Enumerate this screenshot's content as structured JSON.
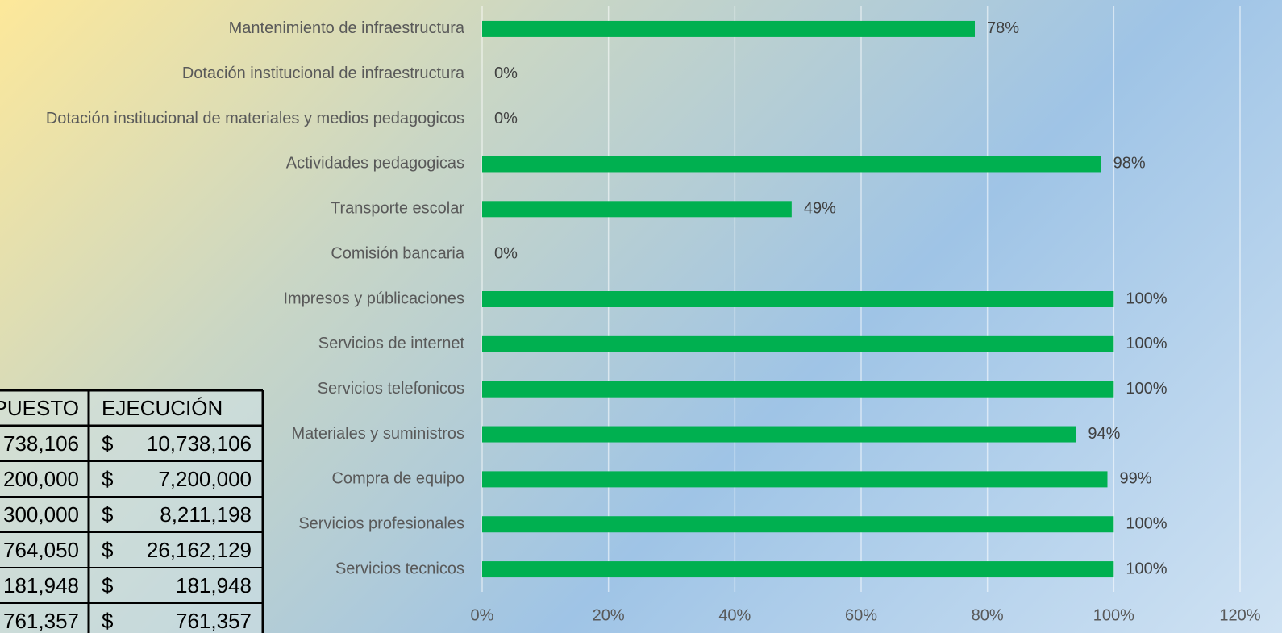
{
  "chart_data": {
    "type": "bar",
    "orientation": "horizontal",
    "categories": [
      "Mantenimiento de infraestructura",
      "Dotación institucional de infraestructura",
      "Dotación institucional de materiales y medios pedagogicos",
      "Actividades pedagogicas",
      "Transporte escolar",
      "Comisión bancaria",
      "Impresos y públicaciones",
      "Servicios de internet",
      "Servicios telefonicos",
      "Materiales y suministros",
      "Compra de equipo",
      "Servicios profesionales",
      "Servicios tecnicos"
    ],
    "values": [
      78,
      0,
      0,
      98,
      49,
      0,
      100,
      100,
      100,
      94,
      99,
      100,
      100
    ],
    "value_labels": [
      "78%",
      "0%",
      "0%",
      "98%",
      "49%",
      "0%",
      "100%",
      "100%",
      "100%",
      "94%",
      "99%",
      "100%",
      "100%"
    ],
    "color": "#00b050",
    "xlim": [
      0,
      120
    ],
    "xticks": [
      {
        "value": 0,
        "label": "0%"
      },
      {
        "value": 20,
        "label": "20%"
      },
      {
        "value": 40,
        "label": "40%"
      },
      {
        "value": 60,
        "label": "60%"
      },
      {
        "value": 80,
        "label": "80%"
      },
      {
        "value": 100,
        "label": "100%"
      },
      {
        "value": 120,
        "label": "120%"
      }
    ],
    "grid": true
  },
  "table": {
    "header": [
      "PUESTO",
      "EJECUCIÓN"
    ],
    "rows": [
      [
        "738,106",
        "$",
        "10,738,106"
      ],
      [
        "200,000",
        "$",
        "7,200,000"
      ],
      [
        "300,000",
        "$",
        "8,211,198"
      ],
      [
        "764,050",
        "$",
        "26,162,129"
      ],
      [
        "181,948",
        "$",
        "181,948"
      ],
      [
        "761,357",
        "$",
        "761,357"
      ]
    ]
  }
}
